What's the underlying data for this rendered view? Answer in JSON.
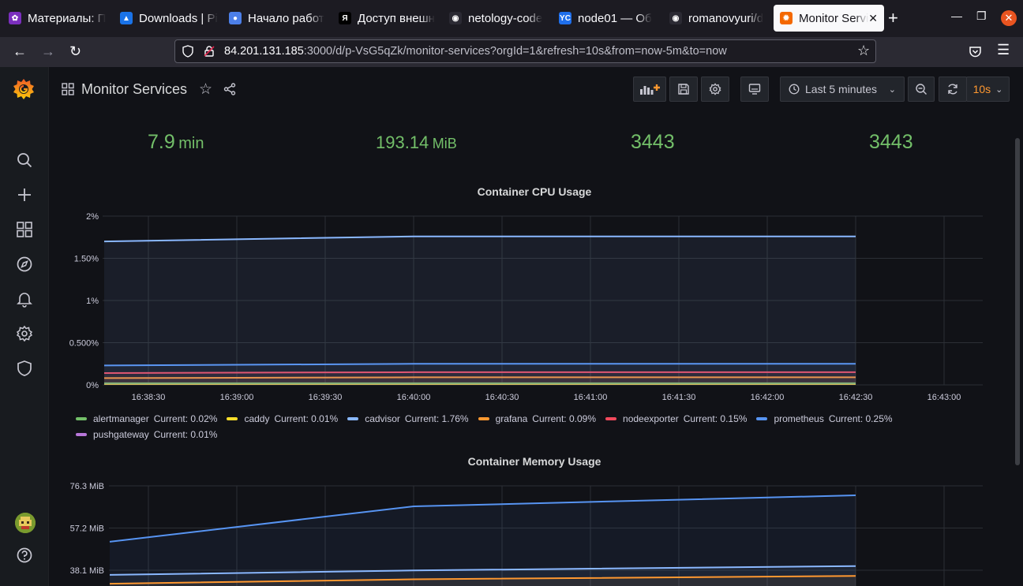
{
  "browser": {
    "tabs": [
      {
        "title": "Материалы: П",
        "color": "#7b2fbe",
        "glyph": "✿"
      },
      {
        "title": "Downloads | Pi",
        "color": "#1a73e8",
        "glyph": "▲"
      },
      {
        "title": "Начало работ",
        "color": "#4c7fe8",
        "glyph": "●"
      },
      {
        "title": "Доступ внешн",
        "color": "#000000",
        "glyph": "Я"
      },
      {
        "title": "netology-code",
        "color": "#2b2a33",
        "glyph": "◉"
      },
      {
        "title": "node01 — Об",
        "color": "#1f6feb",
        "glyph": "YC"
      },
      {
        "title": "romanovyuri/d",
        "color": "#2b2a33",
        "glyph": "◉"
      },
      {
        "title": "Monitor Servi",
        "color": "#f46800",
        "glyph": "✹"
      }
    ],
    "url_host": "84.201.131.185",
    "url_rest": ":3000/d/p-VsG5qZk/monitor-services?orgId=1&refresh=10s&from=now-5m&to=now"
  },
  "dashboard": {
    "title": "Monitor Services",
    "time_range": "Last 5 minutes",
    "refresh": "10s"
  },
  "stats": [
    {
      "value": "7.9",
      "unit": "min"
    },
    {
      "value": "193.14",
      "unit": "MiB"
    },
    {
      "value": "3443",
      "unit": ""
    },
    {
      "value": "3443",
      "unit": ""
    }
  ],
  "cpu_panel": {
    "title": "Container CPU Usage",
    "legend": [
      {
        "name": "alertmanager",
        "current": "Current: 0.02%",
        "color": "#73bf69"
      },
      {
        "name": "caddy",
        "current": "Current: 0.01%",
        "color": "#fade2a"
      },
      {
        "name": "cadvisor",
        "current": "Current: 1.76%",
        "color": "#8ab8ff"
      },
      {
        "name": "grafana",
        "current": "Current: 0.09%",
        "color": "#ff9830"
      },
      {
        "name": "nodeexporter",
        "current": "Current: 0.15%",
        "color": "#f2495c"
      },
      {
        "name": "prometheus",
        "current": "Current: 0.25%",
        "color": "#5794f2"
      },
      {
        "name": "pushgateway",
        "current": "Current: 0.01%",
        "color": "#b877d9"
      }
    ]
  },
  "memory_panel": {
    "title": "Container Memory Usage"
  },
  "chart_data": [
    {
      "type": "line",
      "title": "Container CPU Usage",
      "y_ticks": [
        "0%",
        "0.500%",
        "1%",
        "1.50%",
        "2%"
      ],
      "ylim": [
        0,
        2
      ],
      "x_ticks": [
        "16:38:30",
        "16:39:00",
        "16:39:30",
        "16:40:00",
        "16:40:30",
        "16:41:00",
        "16:41:30",
        "16:42:00",
        "16:42:30",
        "16:43:00"
      ],
      "x": [
        "16:38:15",
        "16:40:00",
        "16:42:30"
      ],
      "series": [
        {
          "name": "cadvisor",
          "values": [
            1.7,
            1.76,
            1.76
          ],
          "color": "#8ab8ff"
        },
        {
          "name": "prometheus",
          "values": [
            0.23,
            0.25,
            0.25
          ],
          "color": "#5794f2"
        },
        {
          "name": "nodeexporter",
          "values": [
            0.14,
            0.15,
            0.15
          ],
          "color": "#f2495c"
        },
        {
          "name": "grafana",
          "values": [
            0.08,
            0.09,
            0.09
          ],
          "color": "#ff9830"
        },
        {
          "name": "alertmanager",
          "values": [
            0.02,
            0.02,
            0.02
          ],
          "color": "#73bf69"
        },
        {
          "name": "caddy",
          "values": [
            0.01,
            0.01,
            0.01
          ],
          "color": "#fade2a"
        },
        {
          "name": "pushgateway",
          "values": [
            0.01,
            0.01,
            0.01
          ],
          "color": "#b877d9"
        }
      ],
      "grid": true
    },
    {
      "type": "line",
      "title": "Container Memory Usage",
      "y_ticks": [
        "38.1 MiB",
        "57.2 MiB",
        "76.3 MiB"
      ],
      "ylim": [
        38.1,
        76.3
      ],
      "x": [
        "16:38:15",
        "16:40:00",
        "16:42:30"
      ],
      "series": [
        {
          "values": [
            51.0,
            67.0,
            72.0
          ],
          "color": "#5794f2"
        },
        {
          "values": [
            36.0,
            38.0,
            40.0
          ],
          "color": "#8ab8ff"
        },
        {
          "values": [
            32.0,
            34.0,
            35.5
          ],
          "color": "#ff9830"
        }
      ],
      "grid": true
    }
  ]
}
